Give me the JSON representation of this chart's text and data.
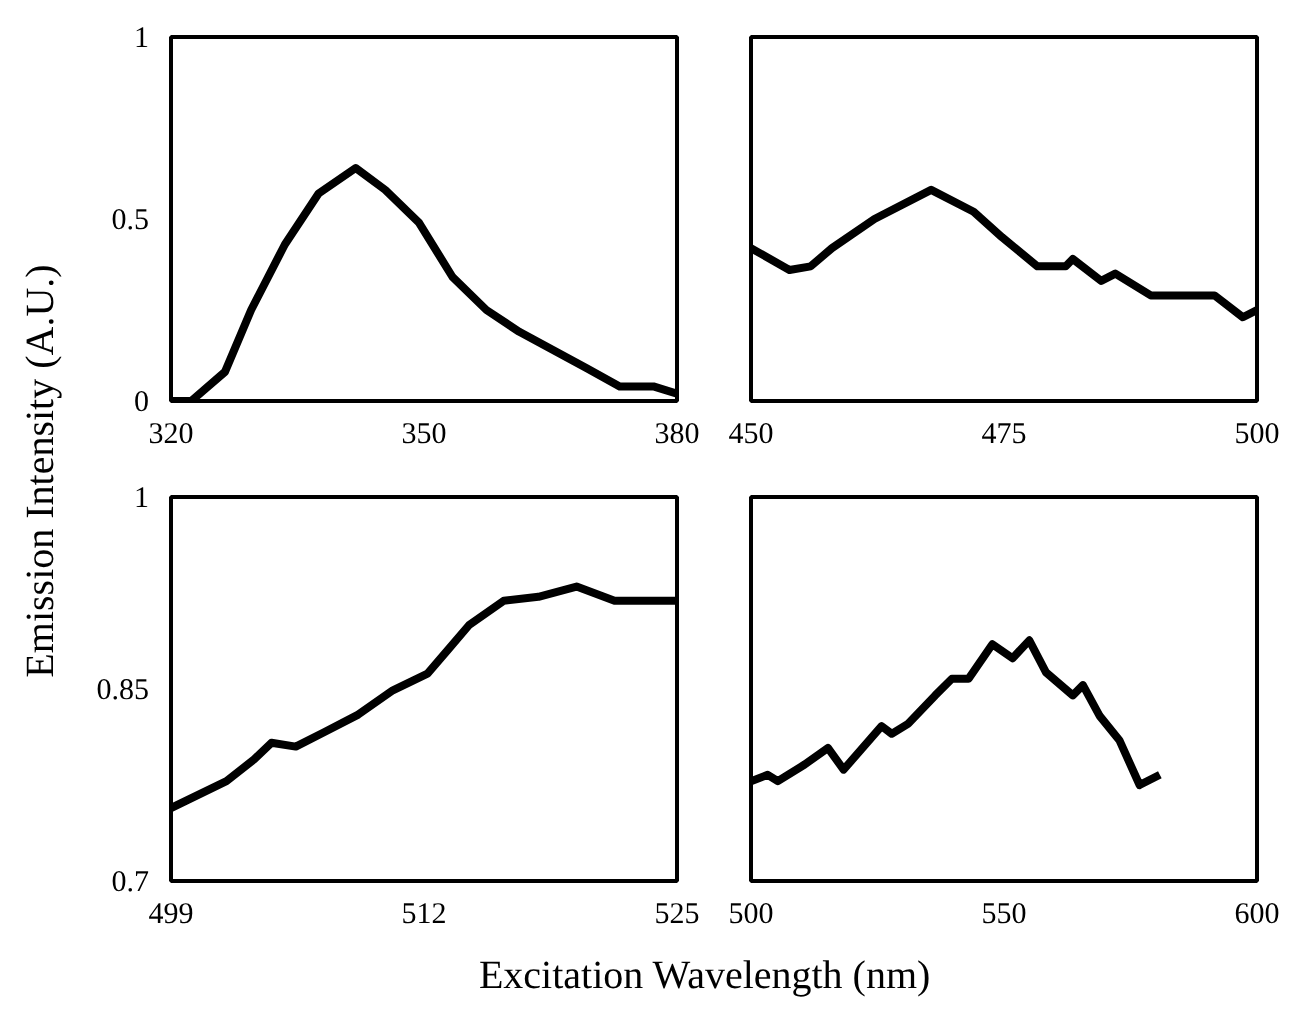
{
  "chart_data": [
    {
      "type": "line",
      "ylabel": "Emission Intensity (A.U.)",
      "xlim": [
        320,
        380
      ],
      "xticks": [
        320,
        350,
        380
      ],
      "ylim": [
        0,
        1
      ],
      "yticks": [
        0,
        0.5,
        1
      ],
      "grid": false,
      "marker": "none",
      "line_style": "solid",
      "series": [
        {
          "color": "#000000",
          "x": [
            320,
            322.4,
            326.4,
            329.5,
            333.5,
            337.5,
            341.9,
            345.4,
            349.4,
            353.4,
            357.4,
            361.3,
            365.3,
            369.3,
            373.2,
            377.2,
            380
          ],
          "values": [
            0,
            0,
            0.08,
            0.25,
            0.43,
            0.57,
            0.64,
            0.58,
            0.49,
            0.34,
            0.25,
            0.19,
            0.14,
            0.09,
            0.04,
            0.04,
            0.02
          ]
        }
      ]
    },
    {
      "type": "line",
      "xlim": [
        450,
        500
      ],
      "xticks": [
        450,
        475,
        500
      ],
      "ylim": [
        0,
        1
      ],
      "yticks": [
        0,
        0.5,
        1
      ],
      "tick_labels": "x",
      "grid": false,
      "marker": "none",
      "line_style": "solid",
      "series": [
        {
          "color": "#000000",
          "x": [
            450,
            453.8,
            455.9,
            458,
            462.2,
            467.8,
            472,
            474.8,
            478.3,
            481.1,
            481.8,
            484.6,
            486,
            489.5,
            493,
            495.8,
            498.6,
            500
          ],
          "values": [
            0.42,
            0.36,
            0.37,
            0.42,
            0.5,
            0.58,
            0.52,
            0.45,
            0.37,
            0.37,
            0.39,
            0.33,
            0.35,
            0.29,
            0.29,
            0.29,
            0.23,
            0.25
          ]
        }
      ]
    },
    {
      "type": "line",
      "xlim": [
        499,
        525
      ],
      "xticks": [
        499,
        512,
        525
      ],
      "ylim": [
        0.7,
        1
      ],
      "yticks": [
        0.7,
        0.85,
        1
      ],
      "grid": false,
      "marker": "none",
      "line_style": "solid",
      "series": [
        {
          "color": "#000000",
          "x": [
            499,
            501.85,
            503.27,
            504.16,
            505.41,
            506.84,
            508.62,
            510.4,
            512.18,
            513.25,
            514.32,
            516.1,
            517.88,
            519.84,
            521.79,
            525
          ],
          "values": [
            0.757,
            0.778,
            0.795,
            0.808,
            0.805,
            0.816,
            0.83,
            0.849,
            0.862,
            0.881,
            0.9,
            0.919,
            0.922,
            0.93,
            0.919,
            0.919
          ]
        }
      ]
    },
    {
      "type": "line",
      "xlabel": "Excitation Wavelength (nm)",
      "xlim": [
        500,
        600
      ],
      "xticks": [
        500,
        550,
        600
      ],
      "ylim": [
        0.7,
        1
      ],
      "yticks": [
        0.7,
        0.85,
        1
      ],
      "tick_labels": "x",
      "grid": false,
      "marker": "none",
      "line_style": "solid",
      "series": [
        {
          "color": "#000000",
          "x": [
            500,
            503.3,
            505.3,
            510.6,
            515.2,
            518.3,
            525.8,
            527.8,
            531.1,
            536.4,
            539.7,
            543,
            547.7,
            551.7,
            555,
            558.3,
            563.6,
            565.6,
            568.9,
            572.8,
            576.8,
            580.8
          ],
          "values": [
            0.778,
            0.783,
            0.778,
            0.791,
            0.804,
            0.787,
            0.821,
            0.815,
            0.823,
            0.845,
            0.858,
            0.858,
            0.885,
            0.874,
            0.888,
            0.863,
            0.845,
            0.853,
            0.829,
            0.81,
            0.775,
            0.783
          ]
        }
      ]
    }
  ]
}
